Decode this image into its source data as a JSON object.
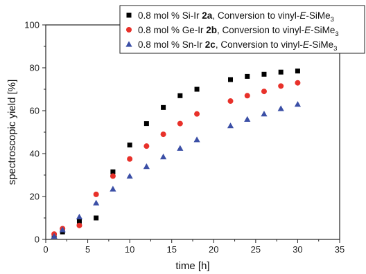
{
  "chart_data": {
    "type": "scatter",
    "xlabel": "time [h]",
    "ylabel": "spectroscopic yield [%]",
    "xlim": [
      0,
      35
    ],
    "ylim": [
      0,
      100
    ],
    "x_ticks": [
      0,
      5,
      10,
      15,
      20,
      25,
      30,
      35
    ],
    "y_ticks": [
      0,
      20,
      40,
      60,
      80,
      100
    ],
    "grid": false,
    "legend_position": "top-right",
    "series": [
      {
        "name_parts": {
          "prefix": "0.8 mol % Si-Ir ",
          "bold": "2a",
          "mid": ", Conversion to vinyl-",
          "italic": "E",
          "suffix": "-SiMe",
          "sub": "3"
        },
        "marker": "square",
        "color": "#000000",
        "x": [
          1,
          2,
          4,
          6,
          8,
          10,
          12,
          14,
          16,
          18,
          22,
          24,
          26,
          28,
          30
        ],
        "y": [
          1.5,
          3.5,
          8.5,
          10,
          31.5,
          44,
          54,
          61.5,
          67,
          70,
          74.5,
          76,
          77,
          78,
          78.5
        ]
      },
      {
        "name_parts": {
          "prefix": "0.8 mol % Ge-Ir ",
          "bold": "2b",
          "mid": ", Conversion to vinyl-",
          "italic": "E",
          "suffix": "-SiMe",
          "sub": "3"
        },
        "marker": "circle",
        "color": "#e8312a",
        "x": [
          1,
          2,
          4,
          6,
          8,
          10,
          12,
          14,
          16,
          18,
          22,
          24,
          26,
          28,
          30
        ],
        "y": [
          2.5,
          5,
          6.5,
          21,
          29.5,
          37.5,
          43.5,
          49,
          54,
          58.5,
          64.5,
          67,
          69,
          71.5,
          73
        ]
      },
      {
        "name_parts": {
          "prefix": "0.8 mol % Sn-Ir ",
          "bold": "2c",
          "mid": ", Conversion to vinyl-",
          "italic": "E",
          "suffix": "-SiMe",
          "sub": "3"
        },
        "marker": "triangle",
        "color": "#3b4fa6",
        "x": [
          1,
          2,
          4,
          6,
          8,
          10,
          12,
          14,
          16,
          18,
          22,
          24,
          26,
          28,
          30
        ],
        "y": [
          1.5,
          4.5,
          10.5,
          17,
          23.5,
          29.5,
          34,
          38.5,
          42.5,
          46.5,
          53,
          56,
          58.5,
          61,
          63
        ]
      }
    ]
  }
}
